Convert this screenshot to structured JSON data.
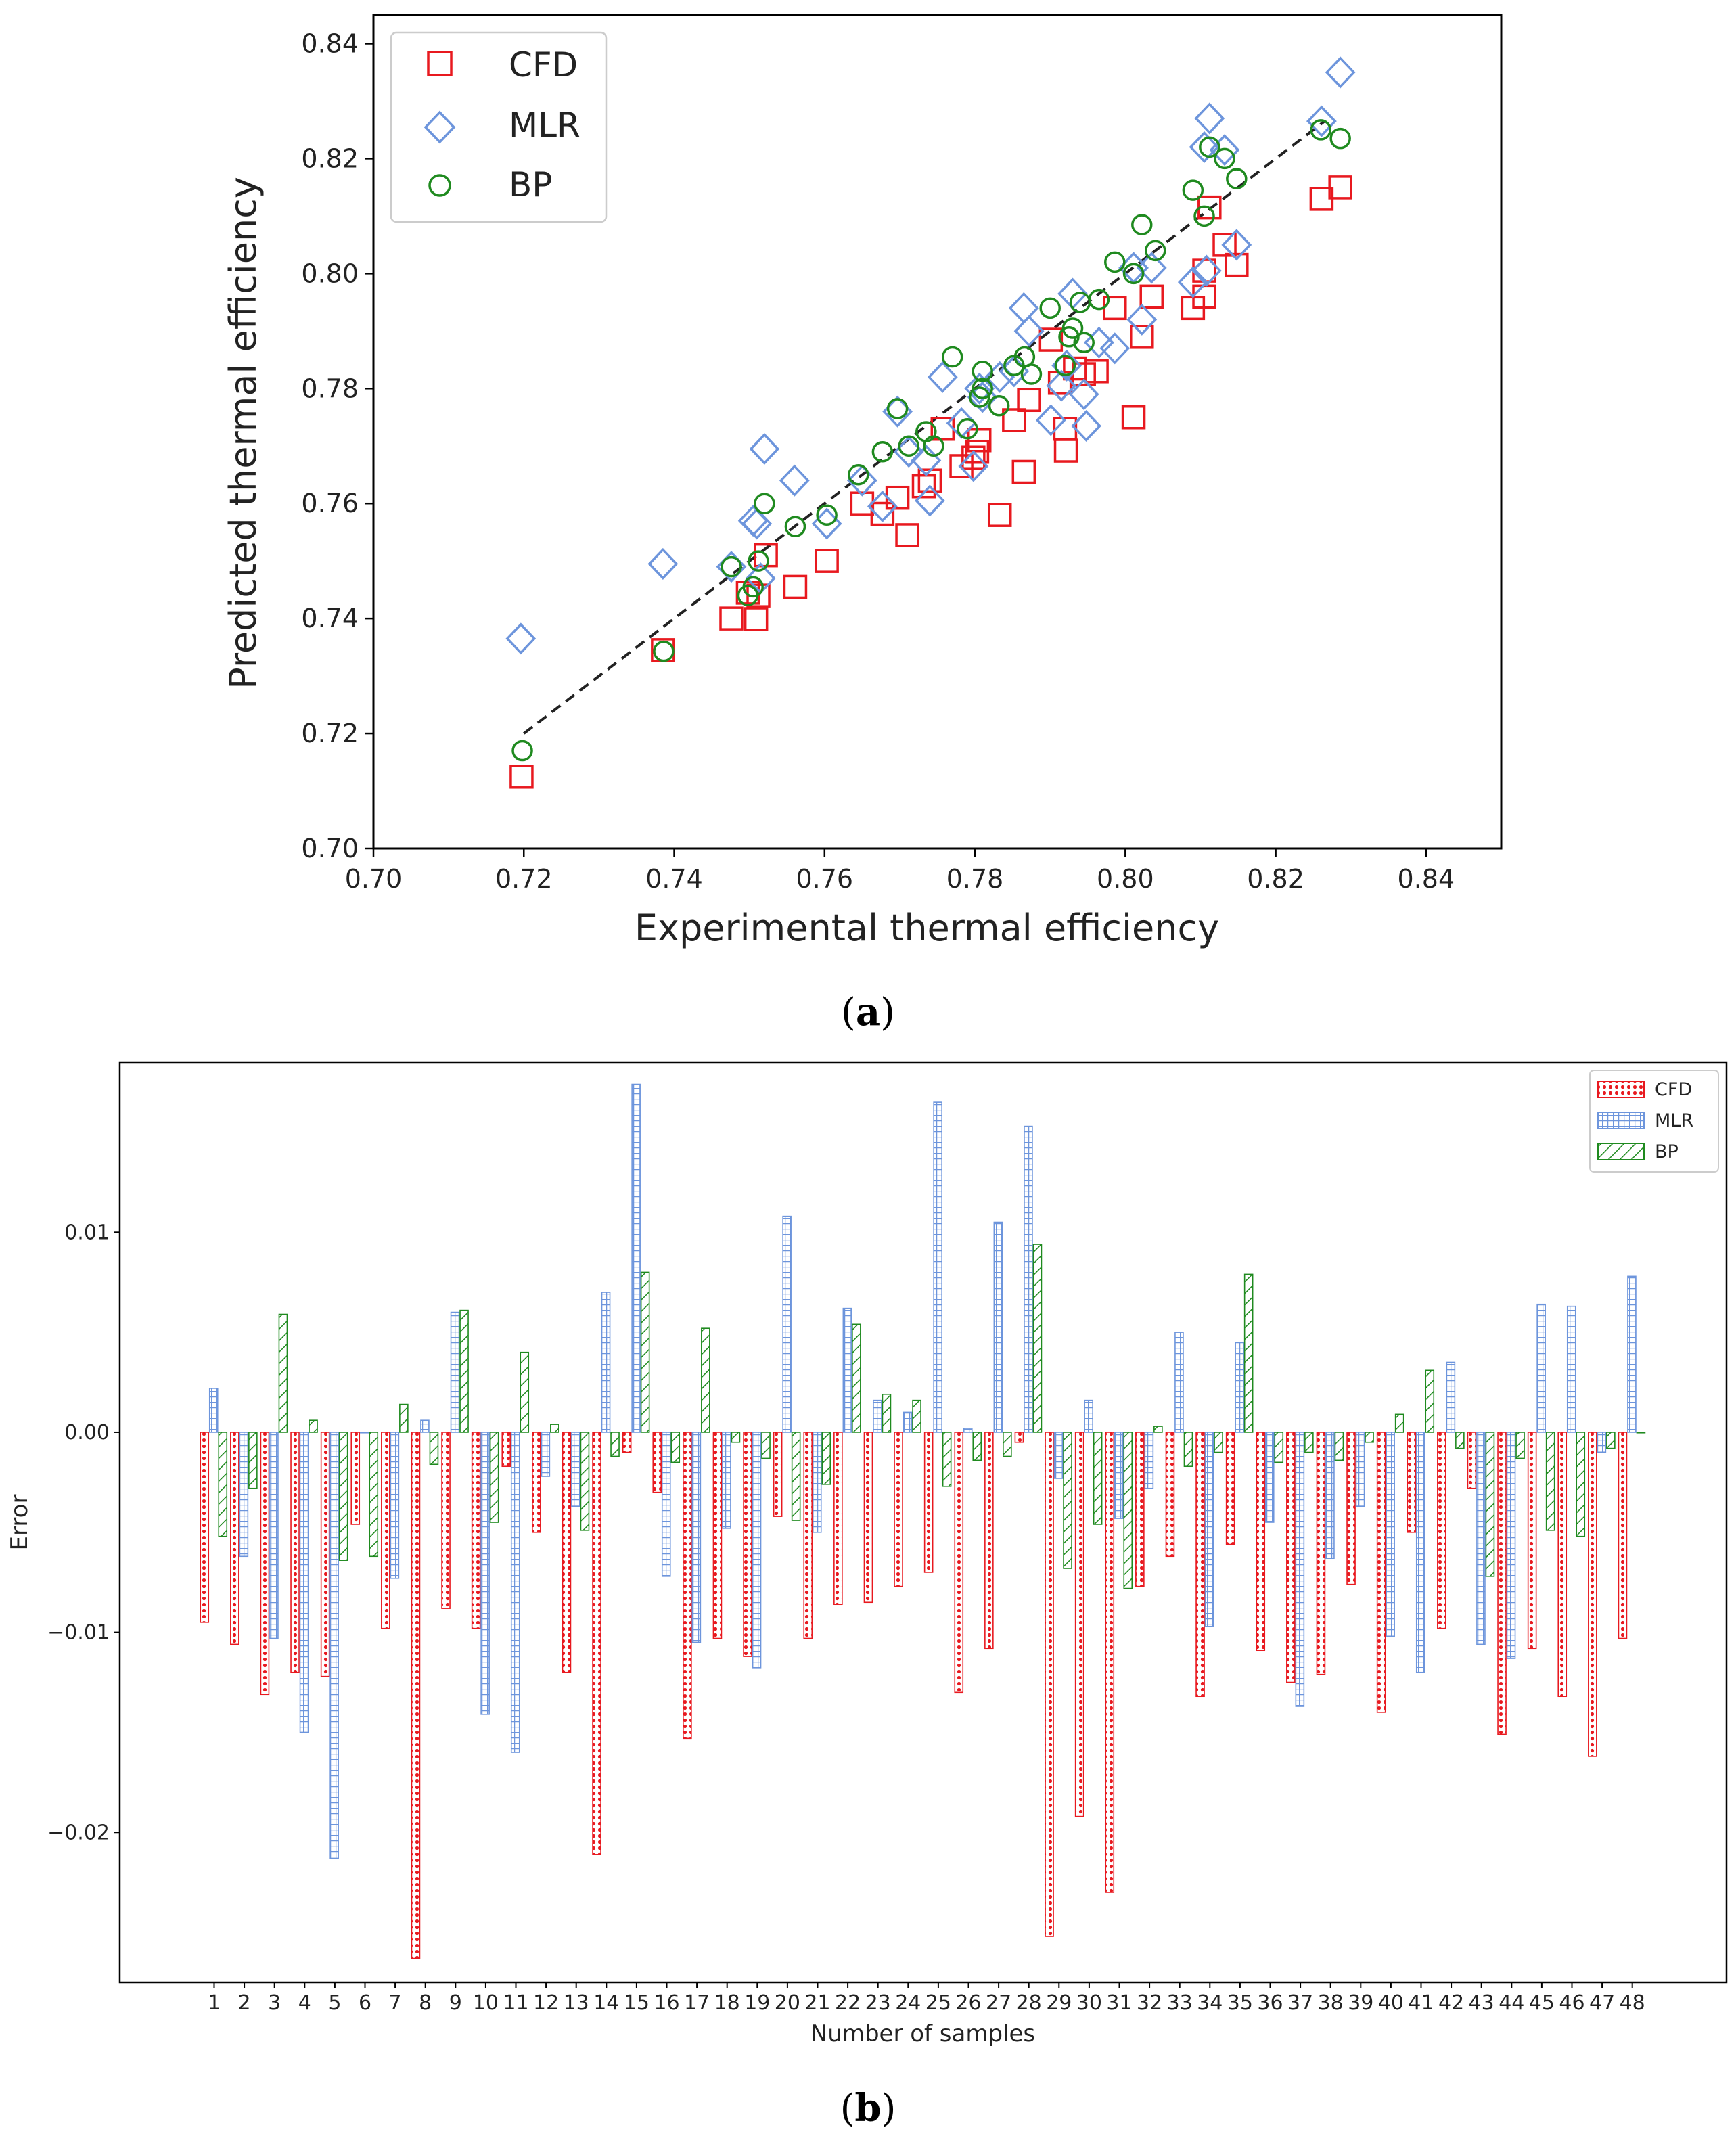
{
  "colors": {
    "cfd": "#e8191f",
    "mlr": "#6d95dc",
    "bp": "#1f8a1f",
    "fit": "#222222"
  },
  "chart_data": [
    {
      "type": "scatter",
      "panel_caption_open": "(",
      "panel_caption_letter": "a",
      "panel_caption_close": ")",
      "xlabel": "Experimental thermal efficiency",
      "ylabel": "Predicted thermal efficiency",
      "xlim": [
        0.7,
        0.85
      ],
      "ylim": [
        0.7,
        0.845
      ],
      "xticks": [
        "0.70",
        "0.72",
        "0.74",
        "0.76",
        "0.78",
        "0.80",
        "0.82",
        "0.84"
      ],
      "yticks": [
        "0.70",
        "0.72",
        "0.74",
        "0.76",
        "0.78",
        "0.80",
        "0.82",
        "0.84"
      ],
      "legend_position": "top-left",
      "fit_line": {
        "x": [
          0.72,
          0.8265
        ],
        "y": [
          0.72,
          0.8265
        ],
        "style": "dashed"
      },
      "series": [
        {
          "name": "CFD",
          "marker": "square",
          "color": "#e8191f",
          "points": [
            [
              0.7197,
              0.7125
            ],
            [
              0.7385,
              0.7345
            ],
            [
              0.7476,
              0.74
            ],
            [
              0.7509,
              0.7399
            ],
            [
              0.7498,
              0.7445
            ],
            [
              0.7512,
              0.744
            ],
            [
              0.7522,
              0.751
            ],
            [
              0.7561,
              0.7455
            ],
            [
              0.7603,
              0.75
            ],
            [
              0.765,
              0.76
            ],
            [
              0.7677,
              0.7582
            ],
            [
              0.7697,
              0.761
            ],
            [
              0.771,
              0.7545
            ],
            [
              0.7732,
              0.763
            ],
            [
              0.774,
              0.764
            ],
            [
              0.7757,
              0.773
            ],
            [
              0.7782,
              0.7665
            ],
            [
              0.7798,
              0.768
            ],
            [
              0.7806,
              0.771
            ],
            [
              0.7803,
              0.769
            ],
            [
              0.7833,
              0.758
            ],
            [
              0.7852,
              0.7745
            ],
            [
              0.7865,
              0.7655
            ],
            [
              0.7872,
              0.778
            ],
            [
              0.7901,
              0.7885
            ],
            [
              0.7913,
              0.781
            ],
            [
              0.792,
              0.773
            ],
            [
              0.7921,
              0.7692
            ],
            [
              0.7933,
              0.7835
            ],
            [
              0.7945,
              0.7825
            ],
            [
              0.7962,
              0.783
            ],
            [
              0.7986,
              0.794
            ],
            [
              0.8011,
              0.775
            ],
            [
              0.8022,
              0.789
            ],
            [
              0.8035,
              0.796
            ],
            [
              0.809,
              0.794
            ],
            [
              0.8105,
              0.796
            ],
            [
              0.8112,
              0.8115
            ],
            [
              0.8132,
              0.805
            ],
            [
              0.8148,
              0.8015
            ],
            [
              0.8105,
              0.8005
            ],
            [
              0.8261,
              0.813
            ],
            [
              0.8286,
              0.815
            ]
          ]
        },
        {
          "name": "MLR",
          "marker": "diamond",
          "color": "#6d95dc",
          "points": [
            [
              0.7196,
              0.7365
            ],
            [
              0.7385,
              0.7495
            ],
            [
              0.7476,
              0.749
            ],
            [
              0.7505,
              0.757
            ],
            [
              0.751,
              0.7565
            ],
            [
              0.752,
              0.7695
            ],
            [
              0.7515,
              0.747
            ],
            [
              0.756,
              0.764
            ],
            [
              0.7603,
              0.7565
            ],
            [
              0.765,
              0.764
            ],
            [
              0.7677,
              0.7595
            ],
            [
              0.7697,
              0.776
            ],
            [
              0.7712,
              0.769
            ],
            [
              0.7735,
              0.7675
            ],
            [
              0.774,
              0.7605
            ],
            [
              0.7757,
              0.782
            ],
            [
              0.7782,
              0.774
            ],
            [
              0.7798,
              0.7665
            ],
            [
              0.7806,
              0.78
            ],
            [
              0.781,
              0.7785
            ],
            [
              0.7833,
              0.782
            ],
            [
              0.7852,
              0.783
            ],
            [
              0.7865,
              0.794
            ],
            [
              0.7872,
              0.79
            ],
            [
              0.7901,
              0.7745
            ],
            [
              0.7915,
              0.7805
            ],
            [
              0.7922,
              0.784
            ],
            [
              0.793,
              0.7965
            ],
            [
              0.7945,
              0.779
            ],
            [
              0.7948,
              0.7735
            ],
            [
              0.7965,
              0.788
            ],
            [
              0.7986,
              0.787
            ],
            [
              0.8011,
              0.801
            ],
            [
              0.8022,
              0.792
            ],
            [
              0.8035,
              0.801
            ],
            [
              0.809,
              0.7985
            ],
            [
              0.8105,
              0.822
            ],
            [
              0.8112,
              0.827
            ],
            [
              0.8108,
              0.8005
            ],
            [
              0.8132,
              0.8215
            ],
            [
              0.8148,
              0.805
            ],
            [
              0.8261,
              0.8265
            ],
            [
              0.8286,
              0.835
            ]
          ]
        },
        {
          "name": "BP",
          "marker": "circle",
          "color": "#1f8a1f",
          "points": [
            [
              0.7198,
              0.717
            ],
            [
              0.7386,
              0.7343
            ],
            [
              0.7476,
              0.749
            ],
            [
              0.7498,
              0.744
            ],
            [
              0.7505,
              0.7455
            ],
            [
              0.7512,
              0.75
            ],
            [
              0.752,
              0.76
            ],
            [
              0.7561,
              0.756
            ],
            [
              0.7603,
              0.758
            ],
            [
              0.7645,
              0.765
            ],
            [
              0.7677,
              0.769
            ],
            [
              0.7697,
              0.7765
            ],
            [
              0.7712,
              0.77
            ],
            [
              0.7735,
              0.7725
            ],
            [
              0.7745,
              0.77
            ],
            [
              0.777,
              0.7855
            ],
            [
              0.779,
              0.773
            ],
            [
              0.7806,
              0.7785
            ],
            [
              0.781,
              0.78
            ],
            [
              0.781,
              0.783
            ],
            [
              0.7832,
              0.777
            ],
            [
              0.7852,
              0.784
            ],
            [
              0.7866,
              0.7855
            ],
            [
              0.7875,
              0.7825
            ],
            [
              0.79,
              0.794
            ],
            [
              0.792,
              0.784
            ],
            [
              0.7925,
              0.789
            ],
            [
              0.793,
              0.7905
            ],
            [
              0.794,
              0.795
            ],
            [
              0.7945,
              0.788
            ],
            [
              0.7965,
              0.7955
            ],
            [
              0.7986,
              0.802
            ],
            [
              0.8011,
              0.8
            ],
            [
              0.8022,
              0.8085
            ],
            [
              0.804,
              0.804
            ],
            [
              0.809,
              0.8145
            ],
            [
              0.8105,
              0.81
            ],
            [
              0.8112,
              0.822
            ],
            [
              0.8132,
              0.82
            ],
            [
              0.8148,
              0.8165
            ],
            [
              0.826,
              0.825
            ],
            [
              0.8286,
              0.8235
            ]
          ]
        }
      ]
    },
    {
      "type": "bar",
      "panel_caption_open": "(",
      "panel_caption_letter": "b",
      "panel_caption_close": ")",
      "xlabel": "Number of samples",
      "ylabel": "Error",
      "ylim": [
        -0.0275,
        0.0185
      ],
      "yticks": [
        {
          "value": 0.01,
          "label": "0.01"
        },
        {
          "value": 0.0,
          "label": "0.00"
        },
        {
          "value": -0.01,
          "label": "−0.01"
        },
        {
          "value": -0.02,
          "label": "−0.02"
        }
      ],
      "categories": [
        "1",
        "2",
        "3",
        "4",
        "5",
        "6",
        "7",
        "8",
        "9",
        "10",
        "11",
        "12",
        "13",
        "14",
        "15",
        "16",
        "17",
        "18",
        "19",
        "20",
        "21",
        "22",
        "23",
        "24",
        "25",
        "26",
        "27",
        "28",
        "29",
        "30",
        "31",
        "32",
        "33",
        "34",
        "35",
        "36",
        "37",
        "38",
        "39",
        "40",
        "41",
        "42",
        "43",
        "44",
        "45",
        "46",
        "47",
        "48"
      ],
      "legend_position": "top-right",
      "series": [
        {
          "name": "CFD",
          "hatch": "dots",
          "color": "#e8191f",
          "values": [
            -0.0095,
            -0.0106,
            -0.0131,
            -0.012,
            -0.0122,
            -0.0046,
            -0.0098,
            -0.0263,
            -0.0088,
            -0.0098,
            -0.0017,
            -0.005,
            -0.012,
            -0.0211,
            -0.001,
            -0.003,
            -0.0153,
            -0.0103,
            -0.0112,
            -0.0042,
            -0.0103,
            -0.0086,
            -0.0085,
            -0.0077,
            -0.007,
            -0.013,
            -0.0108,
            -0.0005,
            -0.0252,
            -0.0192,
            -0.023,
            -0.0077,
            -0.0062,
            -0.0132,
            -0.0056,
            -0.0109,
            -0.0125,
            -0.0121,
            -0.0076,
            -0.014,
            -0.005,
            -0.0098,
            -0.0028,
            -0.0151,
            -0.0108,
            -0.0132,
            -0.0162,
            -0.0103
          ]
        },
        {
          "name": "MLR",
          "hatch": "grid",
          "color": "#6d95dc",
          "values": [
            0.0022,
            -0.0062,
            -0.0103,
            -0.015,
            -0.0213,
            0.0,
            -0.0073,
            0.0006,
            0.006,
            -0.0141,
            -0.016,
            -0.0022,
            -0.0037,
            0.007,
            0.0174,
            -0.0072,
            -0.0105,
            -0.0048,
            -0.0118,
            0.0108,
            -0.005,
            0.0062,
            0.0016,
            0.001,
            0.0165,
            0.0002,
            0.0105,
            0.0153,
            -0.0023,
            0.0016,
            -0.0043,
            -0.0028,
            0.005,
            -0.0097,
            0.0045,
            -0.0045,
            -0.0137,
            -0.0063,
            -0.0037,
            -0.0102,
            -0.012,
            0.0035,
            -0.0106,
            -0.0113,
            0.0064,
            0.0063,
            -0.001,
            0.0078
          ]
        },
        {
          "name": "BP",
          "hatch": "diagonal",
          "color": "#1f8a1f",
          "values": [
            -0.0052,
            -0.0028,
            0.0059,
            0.0006,
            -0.0064,
            -0.0062,
            0.0014,
            -0.0016,
            0.0061,
            -0.0045,
            0.004,
            0.0004,
            -0.0049,
            -0.0012,
            0.008,
            -0.0015,
            0.0052,
            -0.0005,
            -0.0013,
            -0.0044,
            -0.0026,
            0.0054,
            0.0019,
            0.0016,
            -0.0027,
            -0.0014,
            -0.0012,
            0.0094,
            -0.0068,
            -0.0046,
            -0.0078,
            0.0003,
            -0.0017,
            -0.001,
            0.0079,
            -0.0015,
            -0.001,
            -0.0014,
            -0.0005,
            0.0009,
            0.0031,
            -0.0008,
            -0.0072,
            -0.0013,
            -0.0049,
            -0.0052,
            -0.0008,
            0.0
          ]
        }
      ]
    }
  ]
}
